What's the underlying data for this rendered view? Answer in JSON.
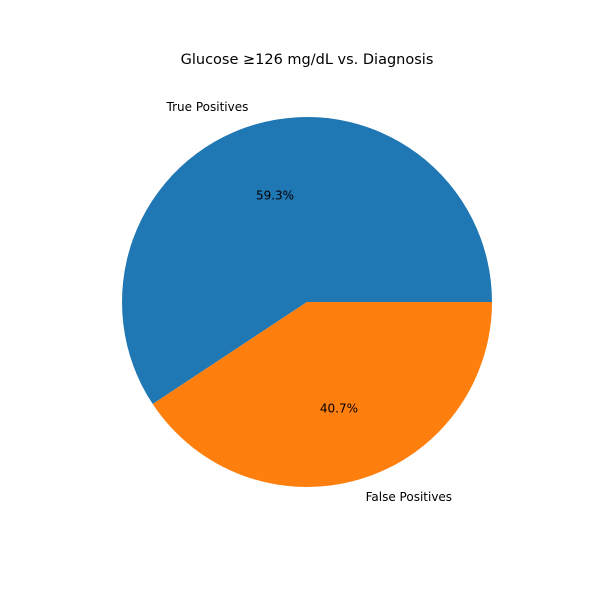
{
  "chart_data": {
    "type": "pie",
    "title": "Glucose ≥126 mg/dL vs. Diagnosis",
    "slices": [
      {
        "label": "True Positives",
        "value": 59.3,
        "percent_label": "59.3%",
        "color": "#1f77b4"
      },
      {
        "label": "False Positives",
        "value": 40.7,
        "percent_label": "40.7%",
        "color": "#ff7f0e"
      }
    ],
    "start_angle_deg": 0,
    "direction": "counterclockwise",
    "legend": "none"
  }
}
